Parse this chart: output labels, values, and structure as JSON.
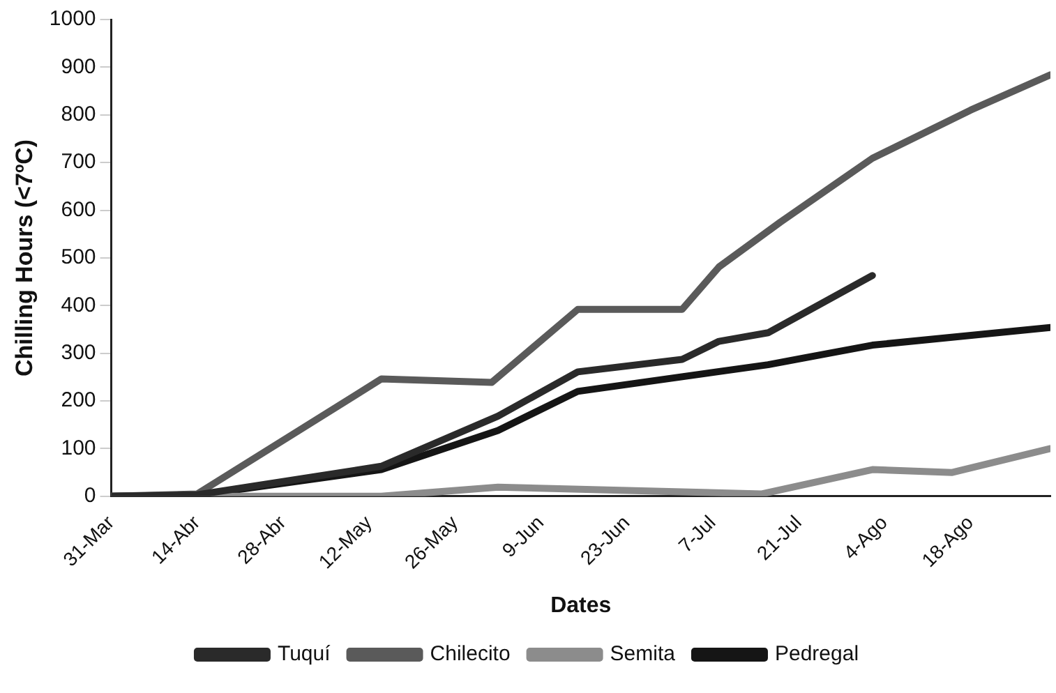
{
  "chart_data": {
    "type": "line",
    "xlabel": "Dates",
    "ylabel": "Chilling Hours (<7ºC)",
    "xlim": [
      "--03-31",
      "--08-31"
    ],
    "xticks": [
      {
        "value": "--03-31",
        "label": "31-Mar"
      },
      {
        "value": "--04-14",
        "label": "14-Abr"
      },
      {
        "value": "--04-28",
        "label": "28-Abr"
      },
      {
        "value": "--05-12",
        "label": "12-May"
      },
      {
        "value": "--05-26",
        "label": "26-May"
      },
      {
        "value": "--06-09",
        "label": "9-Jun"
      },
      {
        "value": "--06-23",
        "label": "23-Jun"
      },
      {
        "value": "--07-07",
        "label": "7-Jul"
      },
      {
        "value": "--07-21",
        "label": "21-Jul"
      },
      {
        "value": "--08-04",
        "label": "4-Ago"
      },
      {
        "value": "--08-18",
        "label": "18-Ago"
      }
    ],
    "ylim": [
      0,
      1000
    ],
    "yticks": [
      0,
      100,
      200,
      300,
      400,
      500,
      600,
      700,
      800,
      900,
      1000
    ],
    "grid": false,
    "legend": "bottom",
    "marker": "none",
    "line_style": "solid",
    "series": [
      {
        "name": "Tuquí",
        "color": "#2a2a2a",
        "x": [
          "--03-31",
          "--04-14",
          "--05-14",
          "--06-02",
          "--06-15",
          "--07-02",
          "--07-08",
          "--07-16",
          "--08-02"
        ],
        "values": [
          0,
          3,
          63,
          168,
          261,
          287,
          325,
          343,
          463
        ]
      },
      {
        "name": "Chilecito",
        "color": "#5a5a5a",
        "x": [
          "--03-31",
          "--04-14",
          "--05-14",
          "--06-01",
          "--06-15",
          "--07-02",
          "--07-08",
          "--07-18",
          "--08-02",
          "--08-18",
          "--08-31"
        ],
        "values": [
          0,
          5,
          246,
          239,
          392,
          392,
          481,
          575,
          709,
          810,
          884
        ]
      },
      {
        "name": "Semita",
        "color": "#8c8c8c",
        "x": [
          "--03-31",
          "--05-14",
          "--06-02",
          "--07-15",
          "--08-02",
          "--08-15",
          "--08-31"
        ],
        "values": [
          0,
          0,
          19,
          5,
          56,
          50,
          100
        ]
      },
      {
        "name": "Pedregal",
        "color": "#151515",
        "x": [
          "--03-31",
          "--04-14",
          "--05-14",
          "--06-02",
          "--06-15",
          "--07-16",
          "--08-02",
          "--08-31"
        ],
        "values": [
          0,
          2,
          56,
          138,
          220,
          276,
          317,
          354
        ]
      }
    ]
  }
}
